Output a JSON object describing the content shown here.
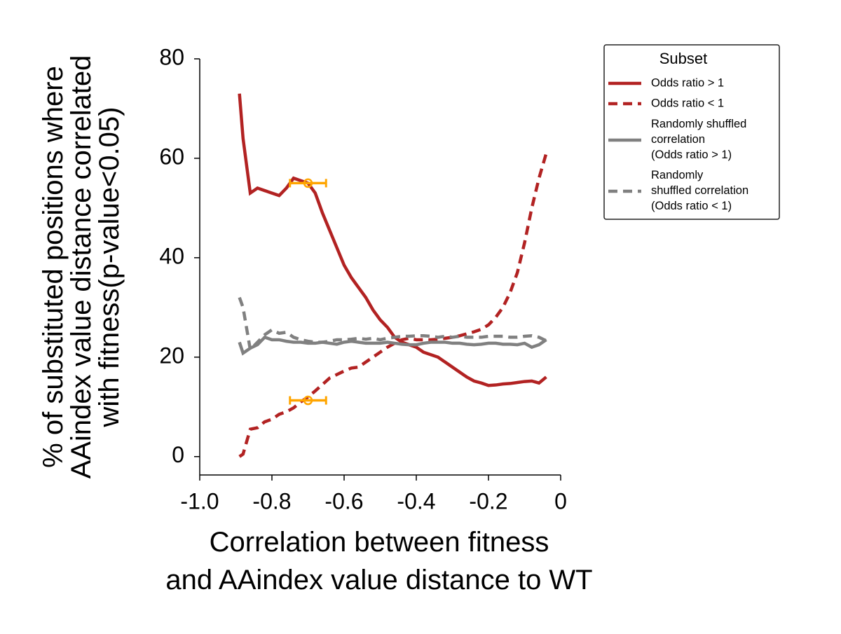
{
  "chart_data": {
    "type": "line",
    "xlabel": "Correlation between fitness\nand AAindex value distance to WT",
    "ylabel": "% of substituted positions where\nAAindex value distance correlated\nwith fitness(p-value<0.05)",
    "x": [
      -0.89,
      -0.88,
      -0.86,
      -0.84,
      -0.82,
      -0.8,
      -0.78,
      -0.76,
      -0.74,
      -0.72,
      -0.7,
      -0.68,
      -0.66,
      -0.64,
      -0.62,
      -0.6,
      -0.58,
      -0.56,
      -0.54,
      -0.52,
      -0.5,
      -0.48,
      -0.46,
      -0.44,
      -0.42,
      -0.4,
      -0.38,
      -0.36,
      -0.34,
      -0.32,
      -0.3,
      -0.28,
      -0.26,
      -0.24,
      -0.22,
      -0.2,
      -0.18,
      -0.16,
      -0.14,
      -0.12,
      -0.1,
      -0.08,
      -0.06,
      -0.04
    ],
    "series": [
      {
        "name": "Odds ratio > 1",
        "color": "#b22222",
        "dashed": false,
        "values": [
          73,
          64,
          53,
          54,
          53.5,
          53,
          52.5,
          54,
          56,
          55.5,
          55,
          53,
          49,
          45.5,
          42,
          38.5,
          36,
          34,
          32,
          29.5,
          27.5,
          26,
          24,
          23,
          22.5,
          22,
          21,
          20.5,
          20,
          19,
          18,
          17,
          16,
          15.2,
          14.8,
          14.3,
          14.4,
          14.6,
          14.7,
          14.9,
          15.1,
          15.2,
          14.8,
          16
        ]
      },
      {
        "name": "Odds ratio < 1",
        "color": "#b22222",
        "dashed": true,
        "values": [
          0,
          0.5,
          5.5,
          5.8,
          7,
          7.5,
          8.5,
          9,
          9.8,
          11,
          12,
          13.2,
          14.5,
          15.8,
          16.5,
          17.2,
          17.8,
          18,
          19,
          20,
          21,
          22,
          22.8,
          23.5,
          23.8,
          23.5,
          23.5,
          23.5,
          23.6,
          23.8,
          24,
          24.3,
          24.7,
          25.1,
          25.6,
          26.5,
          28,
          30,
          33,
          37,
          43,
          50,
          56,
          61
        ]
      },
      {
        "name": "Randomly shuffled\ncorrelation\n(Odds ratio > 1)",
        "color": "#808080",
        "dashed": false,
        "values": [
          23,
          20.8,
          21.8,
          22.5,
          24,
          23.5,
          23.5,
          23.2,
          23,
          23,
          22.8,
          22.8,
          23,
          22.8,
          22.6,
          23,
          23.2,
          23,
          22.8,
          22.8,
          22.8,
          23,
          22.8,
          22.6,
          22.5,
          22.5,
          22.8,
          23,
          23,
          23,
          22.8,
          22.8,
          22.6,
          22.5,
          22.6,
          22.8,
          22.8,
          22.6,
          22.6,
          22.5,
          22.8,
          22,
          22.5,
          23.5
        ]
      },
      {
        "name": "Randomly\nshuffled correlation\n(Odds ratio < 1)",
        "color": "#808080",
        "dashed": true,
        "values": [
          32,
          30,
          21.5,
          23,
          24.5,
          25.5,
          24.8,
          25,
          24,
          23.5,
          23.2,
          23,
          23,
          23.2,
          23.5,
          23.5,
          23.6,
          23.8,
          23.6,
          23.8,
          23.5,
          23.8,
          24,
          24.2,
          24.2,
          24.3,
          24.3,
          24.2,
          24,
          24.2,
          24,
          24.2,
          24,
          24,
          24,
          24.2,
          24.2,
          24.2,
          24,
          24,
          24.2,
          24.3,
          24,
          23.3
        ]
      }
    ],
    "markers": [
      {
        "x": -0.7,
        "y": 55,
        "xerr": 0.05
      },
      {
        "x": -0.7,
        "y": 11.3,
        "xerr": 0.05
      }
    ],
    "marker_color": "#ffa500",
    "xlim": [
      -1,
      0
    ],
    "ylim": [
      -3.7,
      80
    ],
    "xticks": [
      {
        "value": -1,
        "label": "-1.0"
      },
      -0.8,
      -0.6,
      -0.4,
      -0.2,
      0
    ],
    "yticks": [
      0,
      20,
      40,
      60,
      80
    ],
    "legend_title": "Subset",
    "legend_position": "outside-upper-right"
  }
}
